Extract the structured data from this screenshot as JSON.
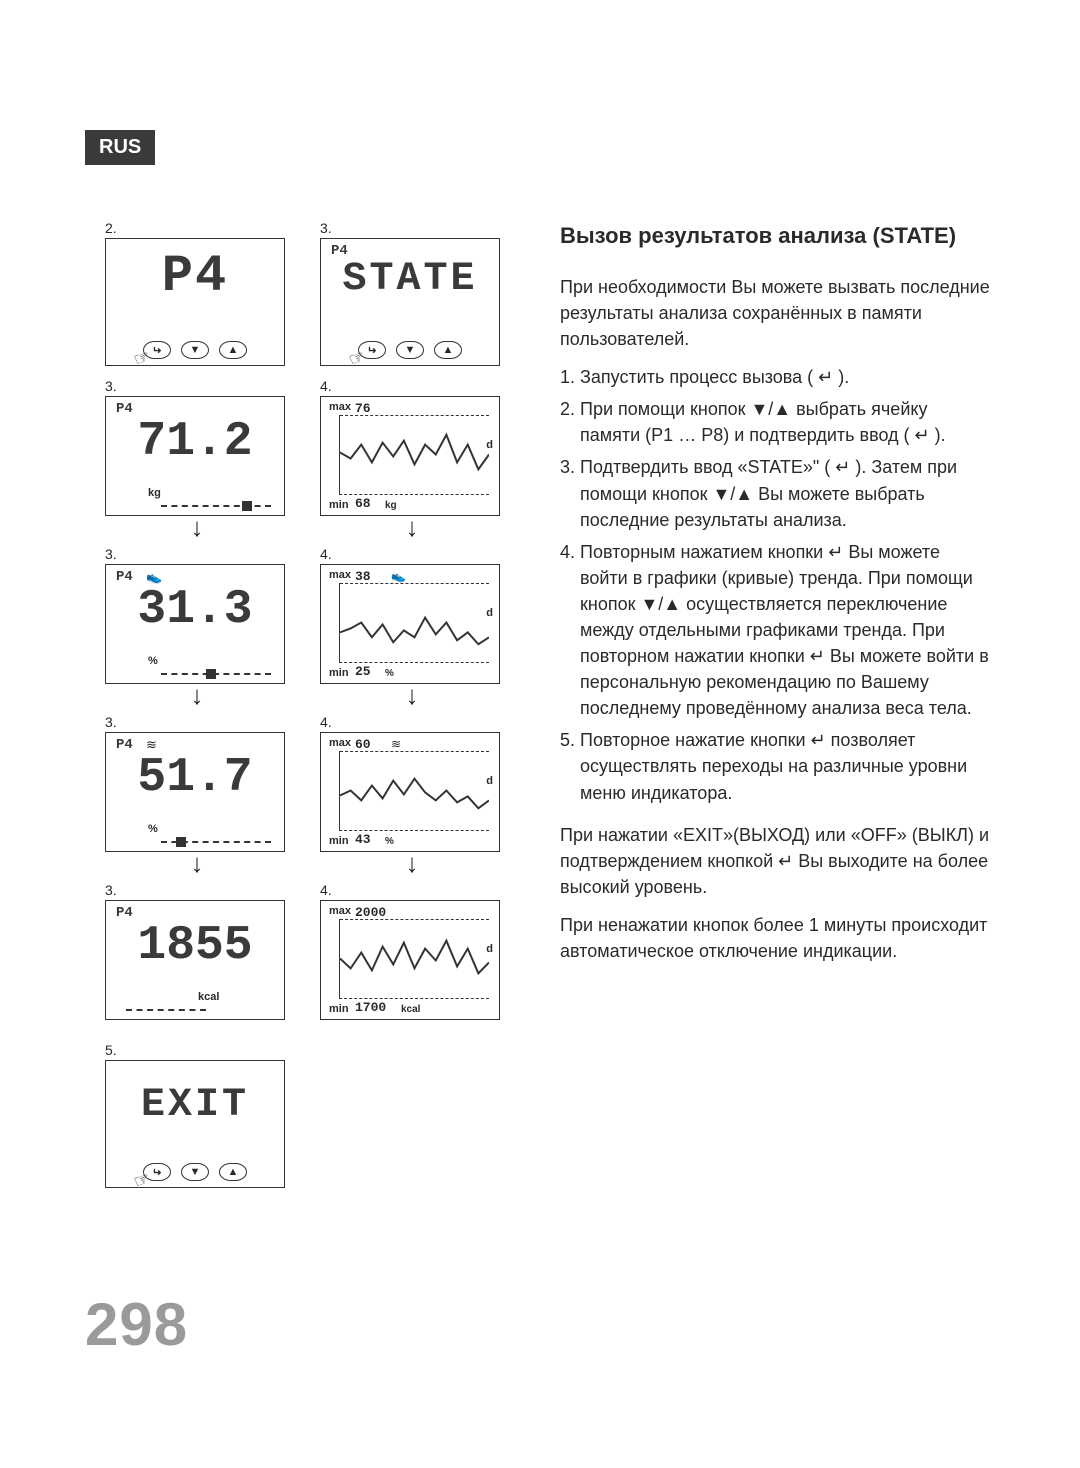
{
  "lang_badge": "RUS",
  "page_number": "298",
  "heading": "Вызов результатов анализа (STATE)",
  "intro": "При необходимости Вы можете вызвать последние результаты анализа сохранённых в памяти пользователей.",
  "steps": [
    "1. Запустить процесс вызова ( ↵ ).",
    "2. При помощи кнопок ▼/▲ выбрать ячейку памяти (P1 … P8) и подтвердить ввод ( ↵ ).",
    "3. Подтвердить ввод «STATE»\" ( ↵ ). Затем при помощи кнопок ▼/▲ Вы можете выбрать последние результаты анализа.",
    "4. Повторным нажатием кнопки ↵ Вы можете войти в графики (кривые) тренда. При помощи кнопок ▼/▲ осуществляется переключение между отдельными графиками тренда. При повторном нажатии кнопки ↵ Вы можете войти в персональную рекомендацию по Вашему последнему проведённому анализа веса тела.",
    "5. Повторное нажатие кнопки ↵ позволяет осуществлять переходы на различные уровни меню индикатора."
  ],
  "outro1": "При нажатии «EXIT»(ВЫХОД) или «OFF» (ВЫКЛ) и подтверждением кнопкой ↵ Вы выходите на более высокий уровень.",
  "outro2": "При ненажатии кнопок более 1 минуты происходит автоматическое отключение индикации.",
  "labels": {
    "n2": "2.",
    "n3": "3.",
    "n4": "4.",
    "n5": "5.",
    "p4": "P4",
    "state": "STATE",
    "exit": "EXIT",
    "p4small": "P4",
    "kg": "kg",
    "pct": "%",
    "kcal": "kcal",
    "max": "max",
    "min": "min",
    "d": "d"
  },
  "values": {
    "weight": "71.2",
    "fat": "31.3",
    "water": "51.7",
    "energy": "1855"
  },
  "graphs": {
    "weight": {
      "max": "76",
      "min": "68",
      "unit": "kg",
      "icon": "",
      "points": [
        38,
        44,
        30,
        48,
        28,
        42,
        26,
        50,
        30,
        40,
        20,
        48,
        30,
        55,
        40
      ]
    },
    "fat": {
      "max": "38",
      "min": "25",
      "unit": "%",
      "icon": "👟",
      "points": [
        50,
        46,
        40,
        55,
        42,
        60,
        48,
        55,
        35,
        52,
        40,
        58,
        50,
        62,
        55
      ]
    },
    "water": {
      "max": "60",
      "min": "43",
      "unit": "%",
      "icon": "≋",
      "points": [
        45,
        40,
        50,
        35,
        48,
        30,
        44,
        28,
        42,
        50,
        40,
        52,
        46,
        58,
        50
      ]
    },
    "energy": {
      "max": "2000",
      "min": "1700",
      "unit": "kcal",
      "icon": "",
      "points": [
        40,
        50,
        34,
        52,
        28,
        46,
        24,
        50,
        30,
        42,
        22,
        48,
        30,
        55,
        44
      ]
    }
  },
  "colors": {
    "fg": "#333333",
    "muted": "#9a9a9a",
    "bg": "#ffffff"
  }
}
